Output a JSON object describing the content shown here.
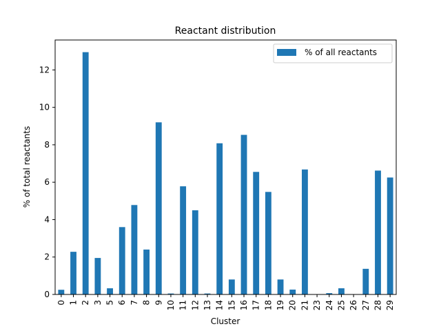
{
  "chart_data": {
    "type": "bar",
    "title": "Reactant distribution",
    "xlabel": "Cluster",
    "ylabel": "% of total reactants",
    "categories": [
      "0",
      "1",
      "2",
      "3",
      "5",
      "6",
      "7",
      "8",
      "9",
      "10",
      "11",
      "12",
      "13",
      "14",
      "15",
      "16",
      "17",
      "18",
      "19",
      "20",
      "21",
      "23",
      "24",
      "25",
      "26",
      "27",
      "28",
      "29"
    ],
    "series": [
      {
        "name": "% of all reactants",
        "color": "#1f77b4",
        "values": [
          0.25,
          2.28,
          12.95,
          1.95,
          0.33,
          3.6,
          4.78,
          2.4,
          9.2,
          0.05,
          5.78,
          4.5,
          0.05,
          8.08,
          0.8,
          8.53,
          6.55,
          5.48,
          0.8,
          0.26,
          6.68,
          0.0,
          0.07,
          0.33,
          0.0,
          1.37,
          6.62,
          6.25
        ]
      }
    ],
    "ylim": [
      0,
      13.6
    ],
    "yticks": [
      0,
      2,
      4,
      6,
      8,
      10,
      12
    ],
    "grid": false,
    "legend_position": "top-right"
  }
}
